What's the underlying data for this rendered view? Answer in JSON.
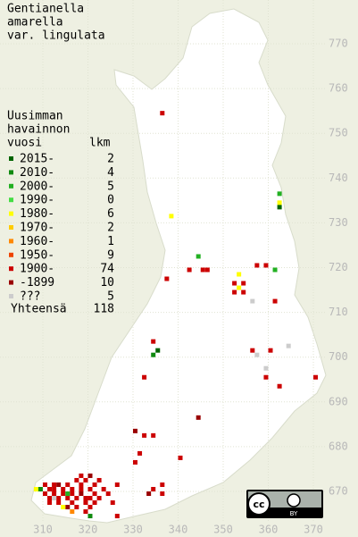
{
  "title_lines": [
    "Gentianella",
    "amarella",
    "var. lingulata"
  ],
  "legend": {
    "heading": [
      "Uusimman",
      "havainnon",
      "vuosi"
    ],
    "count_heading": "lkm",
    "classes": [
      {
        "label": "2015-",
        "count": 2,
        "color": "#006400"
      },
      {
        "label": "2010-",
        "count": 4,
        "color": "#108a10"
      },
      {
        "label": "2000-",
        "count": 5,
        "color": "#22b022"
      },
      {
        "label": "1990-",
        "count": 0,
        "color": "#44dd44"
      },
      {
        "label": "1980-",
        "count": 6,
        "color": "#ffff00"
      },
      {
        "label": "1970-",
        "count": 2,
        "color": "#ffcc00"
      },
      {
        "label": "1960-",
        "count": 1,
        "color": "#ff8800"
      },
      {
        "label": "1950-",
        "count": 9,
        "color": "#ee4400"
      },
      {
        "label": "1900-",
        "count": 74,
        "color": "#cc0000"
      },
      {
        "label": "-1899",
        "count": 10,
        "color": "#990000"
      },
      {
        "label": "???",
        "count": 5,
        "color": "#cccccc"
      }
    ],
    "total_label": "Yhteensä",
    "total": 118
  },
  "axes": {
    "x_ticks": [
      310,
      320,
      330,
      340,
      350,
      360,
      370
    ],
    "y_ticks": [
      770,
      760,
      750,
      740,
      730,
      720,
      710,
      700,
      690,
      680,
      670
    ]
  },
  "records": [
    [
      336,
      754,
      8
    ],
    [
      362,
      736,
      2
    ],
    [
      362,
      734,
      4
    ],
    [
      362,
      733,
      0
    ],
    [
      338,
      731,
      4
    ],
    [
      344,
      722,
      2
    ],
    [
      342,
      719,
      8
    ],
    [
      345,
      719,
      8
    ],
    [
      346,
      719,
      8
    ],
    [
      337,
      717,
      8
    ],
    [
      357,
      720,
      8
    ],
    [
      359,
      720,
      8
    ],
    [
      361,
      719,
      2
    ],
    [
      353,
      718,
      4
    ],
    [
      352,
      716,
      8
    ],
    [
      354,
      716,
      8
    ],
    [
      353,
      715,
      4
    ],
    [
      352,
      714,
      8
    ],
    [
      354,
      714,
      8
    ],
    [
      356,
      712,
      10
    ],
    [
      361,
      712,
      8
    ],
    [
      334,
      703,
      8
    ],
    [
      335,
      701,
      0
    ],
    [
      334,
      700,
      1
    ],
    [
      356,
      701,
      8
    ],
    [
      357,
      700,
      10
    ],
    [
      364,
      702,
      10
    ],
    [
      360,
      701,
      8
    ],
    [
      359,
      697,
      10
    ],
    [
      359,
      695,
      8
    ],
    [
      362,
      693,
      8
    ],
    [
      370,
      695,
      8
    ],
    [
      332,
      695,
      8
    ],
    [
      344,
      686,
      9
    ],
    [
      330,
      683,
      9
    ],
    [
      332,
      682,
      8
    ],
    [
      334,
      682,
      8
    ],
    [
      340,
      677,
      8
    ],
    [
      331,
      678,
      8
    ],
    [
      330,
      676,
      8
    ],
    [
      336,
      671,
      8
    ],
    [
      334,
      670,
      8
    ],
    [
      333,
      669,
      9
    ],
    [
      336,
      669,
      8
    ],
    [
      326,
      671,
      8
    ],
    [
      323,
      670,
      8
    ],
    [
      324,
      669,
      8
    ],
    [
      325,
      667,
      8
    ],
    [
      326,
      664,
      8
    ],
    [
      322,
      672,
      8
    ],
    [
      308,
      670,
      4
    ],
    [
      309,
      670,
      1
    ],
    [
      310,
      671,
      8
    ],
    [
      311,
      670,
      8
    ],
    [
      310,
      669,
      8
    ],
    [
      311,
      668,
      8
    ],
    [
      312,
      671,
      8
    ],
    [
      312,
      670,
      8
    ],
    [
      312,
      669,
      8
    ],
    [
      313,
      668,
      8
    ],
    [
      313,
      671,
      9
    ],
    [
      314,
      670,
      8
    ],
    [
      314,
      669,
      8
    ],
    [
      315,
      671,
      8
    ],
    [
      315,
      668,
      8
    ],
    [
      316,
      670,
      8
    ],
    [
      316,
      669,
      8
    ],
    [
      316,
      667,
      8
    ],
    [
      317,
      672,
      8
    ],
    [
      317,
      668,
      8
    ],
    [
      318,
      671,
      8
    ],
    [
      318,
      670,
      8
    ],
    [
      318,
      669,
      9
    ],
    [
      319,
      668,
      8
    ],
    [
      319,
      667,
      8
    ],
    [
      320,
      670,
      8
    ],
    [
      320,
      668,
      8
    ],
    [
      320,
      666,
      8
    ],
    [
      321,
      669,
      8
    ],
    [
      321,
      667,
      8
    ],
    [
      316,
      665,
      6
    ],
    [
      320,
      664,
      1
    ],
    [
      319,
      665,
      8
    ],
    [
      317,
      666,
      8
    ],
    [
      315,
      666,
      9
    ],
    [
      313,
      667,
      8
    ],
    [
      314,
      666,
      4
    ],
    [
      311,
      667,
      8
    ],
    [
      322,
      668,
      8
    ],
    [
      318,
      673,
      8
    ],
    [
      319,
      672,
      8
    ],
    [
      320,
      673,
      9
    ],
    [
      321,
      671,
      8
    ],
    [
      315,
      669,
      2
    ],
    [
      312,
      668,
      10
    ]
  ],
  "license": {
    "cc": "cc",
    "by": "BY"
  }
}
